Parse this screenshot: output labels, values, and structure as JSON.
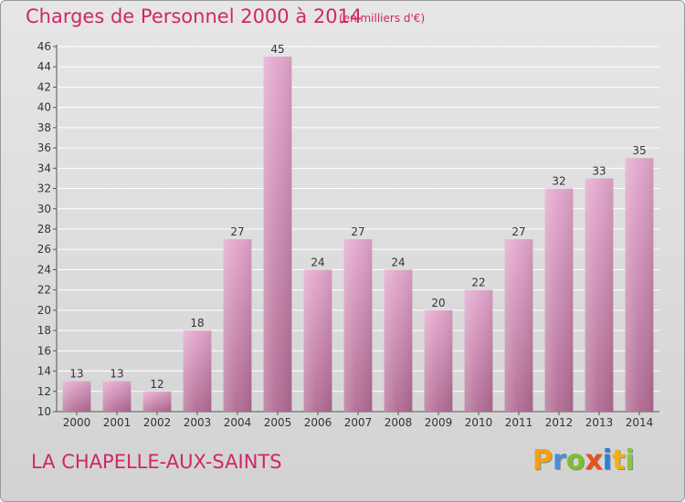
{
  "chart_data": {
    "type": "bar",
    "title": "Charges de Personnel 2000 à 2014",
    "subtitle": "(en milliers d'€)",
    "categories": [
      "2000",
      "2001",
      "2002",
      "2003",
      "2004",
      "2005",
      "2006",
      "2007",
      "2008",
      "2009",
      "2010",
      "2011",
      "2012",
      "2013",
      "2014"
    ],
    "values": [
      13,
      13,
      12,
      18,
      27,
      45,
      24,
      27,
      24,
      20,
      22,
      27,
      32,
      33,
      35
    ],
    "ylim": [
      10,
      46
    ],
    "yticks": [
      10,
      12,
      14,
      16,
      18,
      20,
      22,
      24,
      26,
      28,
      30,
      32,
      34,
      36,
      38,
      40,
      42,
      44,
      46
    ],
    "grid": true,
    "bar_color_top": "#e3a6cc",
    "bar_color_bottom": "#b06a92",
    "xlabel": "",
    "ylabel": ""
  },
  "footer": {
    "place_name": "LA CHAPELLE-AUX-SAINTS",
    "brand_letters": [
      "P",
      "r",
      "o",
      "x",
      "i",
      "t",
      "i"
    ]
  },
  "colors": {
    "title": "#d0266a",
    "grid": "#ffffff",
    "axis": "#555555"
  }
}
